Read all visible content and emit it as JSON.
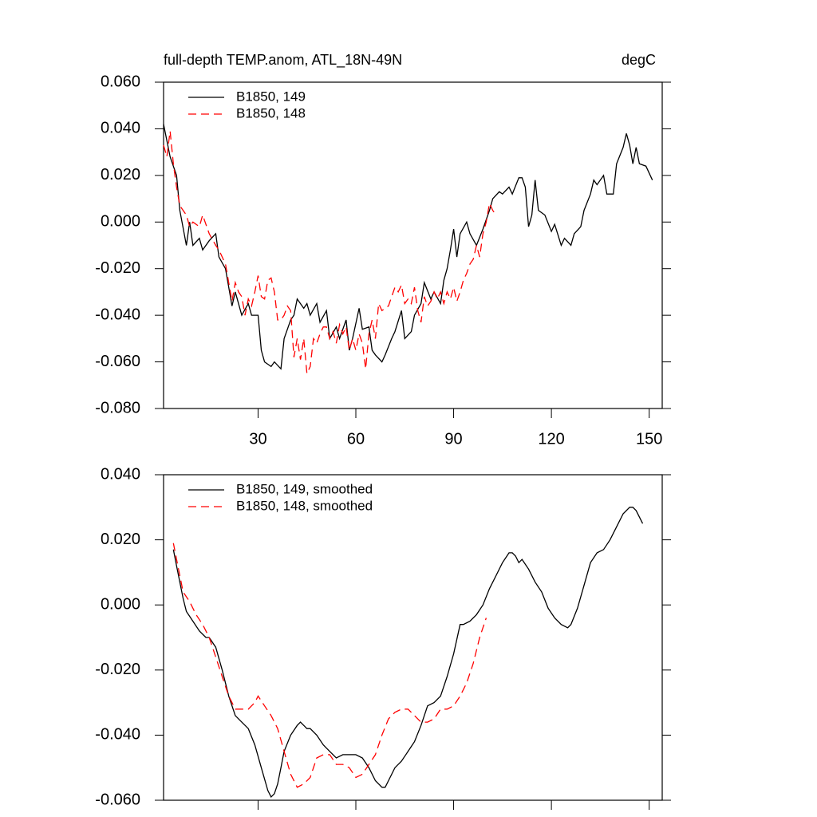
{
  "chart_data": [
    {
      "type": "line",
      "title": "full-depth TEMP.anom, ATL_18N-49N",
      "units": "degC",
      "xlim": [
        1,
        154
      ],
      "xticks": [
        30,
        60,
        90,
        120,
        150
      ],
      "ylim": [
        -0.08,
        0.06
      ],
      "yticks": [
        {
          "value": -0.08,
          "label": "-0.080"
        },
        {
          "value": -0.06,
          "label": "-0.060"
        },
        {
          "value": -0.04,
          "label": "-0.040"
        },
        {
          "value": -0.02,
          "label": "-0.020"
        },
        {
          "value": 0,
          "label": "0.000"
        },
        {
          "value": 0.02,
          "label": "0.020"
        },
        {
          "value": 0.04,
          "label": "0.040"
        },
        {
          "value": 0.06,
          "label": "0.060"
        }
      ],
      "legend": "upper left",
      "series": [
        {
          "name": "B1850, 149",
          "color": "#000000",
          "line_style": "solid",
          "x": [
            1,
            3,
            5,
            6,
            8,
            9,
            10,
            12,
            13,
            15,
            17,
            18,
            20,
            22,
            23,
            25,
            27,
            28,
            30,
            31,
            32,
            34,
            35,
            37,
            38,
            40,
            41,
            42,
            44,
            45,
            46,
            48,
            49,
            51,
            52,
            54,
            55,
            57,
            58,
            59,
            61,
            62,
            64,
            65,
            66,
            68,
            69,
            71,
            72,
            74,
            75,
            77,
            78,
            80,
            81,
            83,
            84,
            86,
            87,
            88,
            89,
            90,
            91,
            92,
            94,
            95,
            97,
            99,
            101,
            102,
            104,
            105,
            107,
            108,
            110,
            111,
            112,
            113,
            114,
            115,
            116,
            118,
            120,
            121,
            123,
            124,
            126,
            127,
            129,
            130,
            132,
            133,
            134,
            136,
            137,
            139,
            140,
            142,
            143,
            144,
            145,
            146,
            147,
            149,
            151
          ],
          "values": [
            0.042,
            0.028,
            0.02,
            0.005,
            -0.01,
            0,
            -0.01,
            -0.007,
            -0.012,
            -0.008,
            -0.005,
            -0.015,
            -0.02,
            -0.036,
            -0.03,
            -0.04,
            -0.035,
            -0.04,
            -0.04,
            -0.055,
            -0.06,
            -0.062,
            -0.06,
            -0.063,
            -0.05,
            -0.042,
            -0.04,
            -0.033,
            -0.037,
            -0.035,
            -0.04,
            -0.035,
            -0.043,
            -0.038,
            -0.05,
            -0.045,
            -0.05,
            -0.042,
            -0.055,
            -0.05,
            -0.037,
            -0.046,
            -0.045,
            -0.055,
            -0.057,
            -0.06,
            -0.057,
            -0.05,
            -0.047,
            -0.038,
            -0.05,
            -0.047,
            -0.04,
            -0.035,
            -0.026,
            -0.033,
            -0.03,
            -0.035,
            -0.025,
            -0.02,
            -0.012,
            -0.003,
            -0.015,
            -0.005,
            0,
            -0.005,
            -0.01,
            -0.003,
            0.005,
            0.01,
            0.013,
            0.012,
            0.015,
            0.012,
            0.019,
            0.019,
            0.015,
            -0.002,
            0.003,
            0.018,
            0.005,
            0.003,
            -0.004,
            -0.001,
            -0.01,
            -0.007,
            -0.01,
            -0.005,
            -0.002,
            0.005,
            0.012,
            0.018,
            0.016,
            0.02,
            0.012,
            0.012,
            0.025,
            0.032,
            0.038,
            0.033,
            0.025,
            0.032,
            0.025,
            0.024,
            0.018
          ]
        },
        {
          "name": "B1850, 148",
          "color": "#ff0000",
          "line_style": "dashed",
          "x": [
            1,
            2,
            3,
            4,
            5,
            6,
            8,
            9,
            10,
            12,
            13,
            15,
            17,
            18,
            20,
            22,
            23,
            24,
            25,
            26,
            27,
            28,
            29,
            30,
            31,
            32,
            33,
            34,
            35,
            36,
            37,
            38,
            39,
            40,
            41,
            42,
            43,
            44,
            45,
            46,
            47,
            48,
            49,
            50,
            51,
            52,
            53,
            54,
            55,
            56,
            57,
            58,
            59,
            60,
            61,
            62,
            63,
            64,
            65,
            66,
            67,
            68,
            69,
            70,
            71,
            72,
            73,
            74,
            75,
            76,
            77,
            78,
            79,
            80,
            81,
            82,
            83,
            84,
            85,
            86,
            87,
            88,
            89,
            90,
            91,
            92,
            93,
            94,
            95,
            96,
            97,
            98,
            99,
            100,
            101,
            102,
            103
          ],
          "values": [
            0.033,
            0.028,
            0.039,
            0.025,
            0.015,
            0.007,
            0.003,
            -0.002,
            0,
            -0.002,
            0.003,
            -0.005,
            -0.01,
            -0.012,
            -0.018,
            -0.034,
            -0.026,
            -0.03,
            -0.032,
            -0.04,
            -0.033,
            -0.036,
            -0.03,
            -0.023,
            -0.032,
            -0.033,
            -0.025,
            -0.024,
            -0.03,
            -0.042,
            -0.042,
            -0.04,
            -0.036,
            -0.038,
            -0.058,
            -0.05,
            -0.059,
            -0.05,
            -0.065,
            -0.062,
            -0.05,
            -0.052,
            -0.048,
            -0.045,
            -0.045,
            -0.05,
            -0.047,
            -0.052,
            -0.044,
            -0.048,
            -0.045,
            -0.055,
            -0.05,
            -0.055,
            -0.048,
            -0.052,
            -0.063,
            -0.048,
            -0.042,
            -0.05,
            -0.035,
            -0.038,
            -0.037,
            -0.036,
            -0.032,
            -0.028,
            -0.03,
            -0.027,
            -0.035,
            -0.033,
            -0.035,
            -0.028,
            -0.038,
            -0.043,
            -0.032,
            -0.036,
            -0.034,
            -0.03,
            -0.033,
            -0.03,
            -0.035,
            -0.03,
            -0.033,
            -0.028,
            -0.034,
            -0.03,
            -0.025,
            -0.022,
            -0.018,
            -0.016,
            -0.01,
            -0.015,
            -0.005,
            0,
            0.008,
            0.005,
            0.003
          ]
        }
      ]
    },
    {
      "type": "line",
      "xlim": [
        1,
        154
      ],
      "xticks": [
        30,
        60,
        90,
        120,
        150
      ],
      "ylim": [
        -0.06,
        0.04
      ],
      "yticks": [
        {
          "value": -0.06,
          "label": "-0.060"
        },
        {
          "value": -0.04,
          "label": "-0.040"
        },
        {
          "value": -0.02,
          "label": "-0.020"
        },
        {
          "value": 0,
          "label": "0.000"
        },
        {
          "value": 0.02,
          "label": "0.020"
        },
        {
          "value": 0.04,
          "label": "0.040"
        }
      ],
      "legend": "upper left",
      "series": [
        {
          "name": "B1850, 149, smoothed",
          "color": "#000000",
          "line_style": "solid",
          "x": [
            4,
            5,
            6,
            7,
            8,
            10,
            12,
            14,
            15,
            17,
            19,
            21,
            23,
            25,
            27,
            29,
            31,
            33,
            34,
            35,
            36,
            37,
            38,
            40,
            42,
            43,
            44,
            45,
            46,
            48,
            50,
            52,
            54,
            56,
            58,
            60,
            62,
            64,
            66,
            68,
            69,
            70,
            72,
            74,
            76,
            78,
            80,
            82,
            84,
            86,
            88,
            90,
            92,
            93,
            95,
            97,
            99,
            101,
            103,
            105,
            107,
            108,
            109,
            110,
            111,
            113,
            115,
            117,
            119,
            121,
            123,
            125,
            126,
            128,
            130,
            132,
            134,
            136,
            138,
            140,
            142,
            144,
            145,
            146,
            148
          ],
          "values": [
            0.017,
            0.012,
            0.007,
            0.002,
            -0.002,
            -0.005,
            -0.008,
            -0.01,
            -0.01,
            -0.013,
            -0.02,
            -0.028,
            -0.034,
            -0.036,
            -0.038,
            -0.043,
            -0.05,
            -0.057,
            -0.059,
            -0.058,
            -0.055,
            -0.05,
            -0.045,
            -0.04,
            -0.037,
            -0.036,
            -0.037,
            -0.038,
            -0.038,
            -0.04,
            -0.043,
            -0.045,
            -0.047,
            -0.046,
            -0.046,
            -0.046,
            -0.047,
            -0.05,
            -0.054,
            -0.056,
            -0.056,
            -0.054,
            -0.05,
            -0.048,
            -0.045,
            -0.042,
            -0.037,
            -0.031,
            -0.03,
            -0.028,
            -0.022,
            -0.015,
            -0.006,
            -0.006,
            -0.005,
            -0.003,
            0,
            0.005,
            0.009,
            0.013,
            0.016,
            0.016,
            0.015,
            0.013,
            0.014,
            0.011,
            0.007,
            0.004,
            -0.001,
            -0.004,
            -0.006,
            -0.007,
            -0.006,
            -0.001,
            0.006,
            0.013,
            0.016,
            0.017,
            0.02,
            0.024,
            0.028,
            0.03,
            0.03,
            0.029,
            0.025
          ]
        },
        {
          "name": "B1850, 148, smoothed",
          "color": "#ff0000",
          "line_style": "dashed",
          "x": [
            4,
            5,
            6,
            7,
            9,
            11,
            13,
            15,
            17,
            19,
            21,
            23,
            25,
            27,
            29,
            30,
            32,
            34,
            36,
            38,
            40,
            42,
            44,
            46,
            47,
            48,
            50,
            52,
            54,
            56,
            58,
            60,
            62,
            64,
            66,
            68,
            70,
            72,
            74,
            76,
            78,
            80,
            82,
            84,
            86,
            88,
            90,
            92,
            94,
            96,
            98,
            100
          ],
          "values": [
            0.019,
            0.014,
            0.009,
            0.004,
            0.001,
            -0.003,
            -0.006,
            -0.01,
            -0.016,
            -0.022,
            -0.028,
            -0.032,
            -0.032,
            -0.032,
            -0.03,
            -0.028,
            -0.031,
            -0.034,
            -0.038,
            -0.045,
            -0.052,
            -0.056,
            -0.055,
            -0.053,
            -0.05,
            -0.047,
            -0.046,
            -0.046,
            -0.049,
            -0.049,
            -0.05,
            -0.053,
            -0.052,
            -0.049,
            -0.046,
            -0.04,
            -0.035,
            -0.033,
            -0.032,
            -0.032,
            -0.034,
            -0.036,
            -0.036,
            -0.035,
            -0.032,
            -0.032,
            -0.031,
            -0.028,
            -0.024,
            -0.018,
            -0.01,
            -0.004
          ]
        }
      ]
    }
  ]
}
